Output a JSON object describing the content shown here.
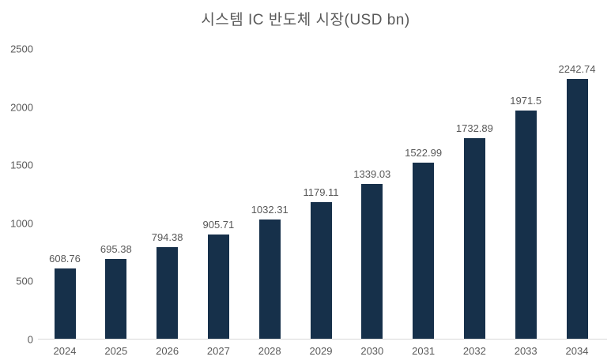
{
  "chart_data": {
    "type": "bar",
    "title": "시스템 IC 반도체 시장(USD bn)",
    "categories": [
      "2024",
      "2025",
      "2026",
      "2027",
      "2028",
      "2029",
      "2030",
      "2031",
      "2032",
      "2033",
      "2034"
    ],
    "values": [
      608.76,
      695.38,
      794.38,
      905.71,
      1032.31,
      1179.11,
      1339.03,
      1522.99,
      1732.89,
      1971.5,
      2242.74
    ],
    "value_labels": [
      "608.76",
      "695.38",
      "794.38",
      "905.71",
      "1032.31",
      "1179.11",
      "1339.03",
      "1522.99",
      "1732.89",
      "1971.5",
      "2242.74"
    ],
    "xlabel": "",
    "ylabel": "",
    "ylim": [
      0,
      2500
    ],
    "yticks": [
      "0",
      "500",
      "1000",
      "1500",
      "2000",
      "2500"
    ],
    "grid": false,
    "legend": false,
    "colors": {
      "bar": "#16304a",
      "text": "#595959",
      "axis_line": "#d9d9d9",
      "background": "#ffffff"
    }
  }
}
